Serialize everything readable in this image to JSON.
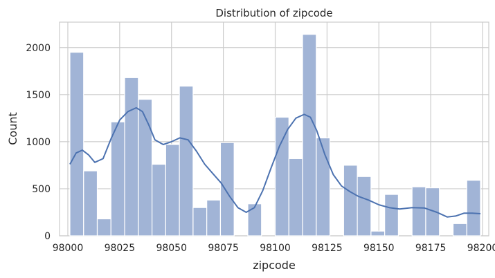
{
  "chart_data": {
    "type": "bar",
    "title": "Distribution of zipcode",
    "xlabel": "zipcode",
    "ylabel": "Count",
    "xlim": [
      97996,
      98203
    ],
    "ylim": [
      0,
      2270
    ],
    "grid": true,
    "x_ticks": [
      98000,
      98025,
      98050,
      98075,
      98100,
      98125,
      98150,
      98175,
      98200
    ],
    "y_ticks": [
      0,
      500,
      1000,
      1500,
      2000
    ],
    "bin_width": 6.6,
    "bins": [
      {
        "x0": 98001.0,
        "count": 1950
      },
      {
        "x0": 98007.6,
        "count": 690
      },
      {
        "x0": 98014.2,
        "count": 180
      },
      {
        "x0": 98020.8,
        "count": 1210
      },
      {
        "x0": 98027.4,
        "count": 1680
      },
      {
        "x0": 98034.0,
        "count": 1450
      },
      {
        "x0": 98040.6,
        "count": 760
      },
      {
        "x0": 98047.2,
        "count": 970
      },
      {
        "x0": 98053.8,
        "count": 1590
      },
      {
        "x0": 98060.4,
        "count": 300
      },
      {
        "x0": 98067.0,
        "count": 380
      },
      {
        "x0": 98073.6,
        "count": 990
      },
      {
        "x0": 98080.2,
        "count": 0
      },
      {
        "x0": 98086.8,
        "count": 340
      },
      {
        "x0": 98093.4,
        "count": 0
      },
      {
        "x0": 98100.0,
        "count": 1260
      },
      {
        "x0": 98106.6,
        "count": 820
      },
      {
        "x0": 98113.2,
        "count": 2140
      },
      {
        "x0": 98119.8,
        "count": 1040
      },
      {
        "x0": 98126.4,
        "count": 0
      },
      {
        "x0": 98133.0,
        "count": 750
      },
      {
        "x0": 98139.6,
        "count": 630
      },
      {
        "x0": 98146.2,
        "count": 50
      },
      {
        "x0": 98152.8,
        "count": 440
      },
      {
        "x0": 98159.4,
        "count": 0
      },
      {
        "x0": 98166.0,
        "count": 520
      },
      {
        "x0": 98172.6,
        "count": 510
      },
      {
        "x0": 98179.2,
        "count": 0
      },
      {
        "x0": 98185.8,
        "count": 130
      },
      {
        "x0": 98192.4,
        "count": 590
      }
    ],
    "kde": {
      "x": [
        98001,
        98004,
        98007,
        98010,
        98013,
        98017,
        98021,
        98025,
        98029,
        98033,
        98036,
        98039,
        98042,
        98046,
        98050,
        98054,
        98058,
        98062,
        98066,
        98070,
        98074,
        98078,
        98082,
        98086,
        98090,
        98094,
        98098,
        98102,
        98106,
        98110,
        98114,
        98117,
        98120,
        98124,
        98128,
        98132,
        98136,
        98140,
        98145,
        98150,
        98155,
        98160,
        98166,
        98172,
        98178,
        98183,
        98187,
        98191,
        98195,
        98199
      ],
      "y": [
        760,
        880,
        910,
        860,
        780,
        820,
        1040,
        1230,
        1320,
        1360,
        1320,
        1180,
        1020,
        970,
        1000,
        1040,
        1020,
        900,
        760,
        660,
        560,
        420,
        300,
        250,
        300,
        480,
        720,
        950,
        1130,
        1250,
        1290,
        1260,
        1120,
        860,
        650,
        530,
        470,
        420,
        380,
        330,
        300,
        285,
        300,
        295,
        250,
        200,
        210,
        240,
        240,
        235
      ]
    },
    "colors": {
      "bar": "#a1b4d6",
      "line": "#4c72b0",
      "grid": "#cccccc",
      "frame": "#cccccc"
    }
  }
}
